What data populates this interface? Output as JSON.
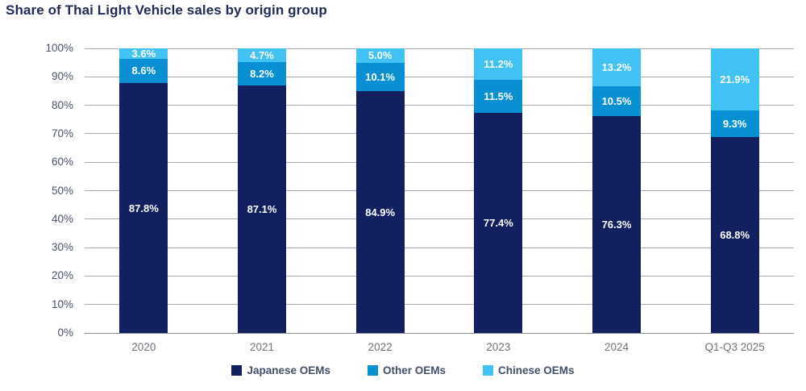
{
  "title": "Share of Thai Light Vehicle sales by origin group",
  "colors": {
    "title": "#1F2A56",
    "gridline": "#A9ABAE",
    "axis_line": "#8C8F93",
    "y_tick_label": "#4A5268",
    "x_tick_label": "#6E7278",
    "legend_text": "#44506A",
    "value_label": "#FFFFFF",
    "background": "#FFFFFF"
  },
  "chart_data": {
    "type": "bar",
    "stacked": true,
    "percent_stacked": true,
    "title": "Share of Thai Light Vehicle sales by origin group",
    "categories": [
      "2020",
      "2021",
      "2022",
      "2023",
      "2024",
      "Q1-Q3 2025"
    ],
    "series": [
      {
        "name": "Japanese OEMs",
        "color": "#12205F",
        "values": [
          87.8,
          87.1,
          84.9,
          77.4,
          76.3,
          68.8
        ]
      },
      {
        "name": "Other OEMs",
        "color": "#0990D4",
        "values": [
          8.6,
          8.2,
          10.1,
          11.5,
          10.5,
          9.3
        ]
      },
      {
        "name": "Chinese OEMs",
        "color": "#41C2F2",
        "values": [
          3.6,
          4.7,
          5.0,
          11.2,
          13.2,
          21.9
        ]
      }
    ],
    "value_label_format": "{v}%",
    "xlabel": "",
    "ylabel": "",
    "ylim": [
      0,
      100
    ],
    "y_ticks": [
      "0%",
      "10%",
      "20%",
      "30%",
      "40%",
      "50%",
      "60%",
      "70%",
      "80%",
      "90%",
      "100%"
    ],
    "grid": true,
    "legend_position": "bottom"
  }
}
